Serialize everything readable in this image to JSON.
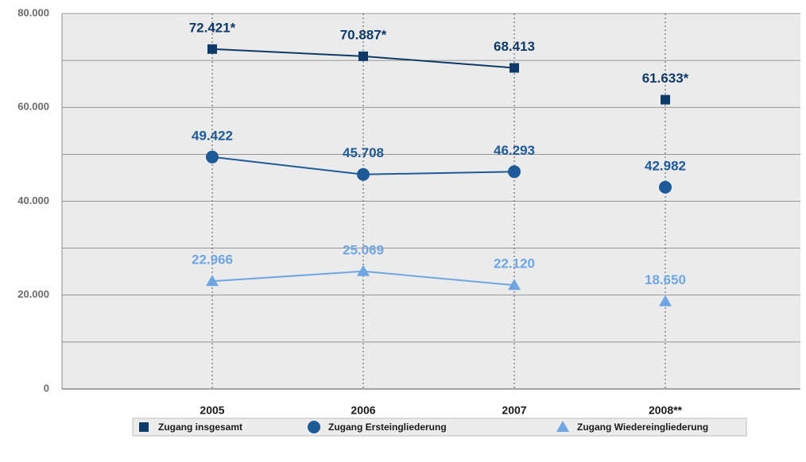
{
  "chart_data": {
    "type": "line",
    "categories": [
      "2005",
      "2006",
      "2007",
      "2008**"
    ],
    "series": [
      {
        "name": "Zugang insgesamt",
        "color": "#0e3a6a",
        "marker": "square",
        "values": [
          72421,
          70887,
          68413,
          61633
        ],
        "value_labels": [
          "72.421*",
          "70.887*",
          "68.413",
          "61.633*"
        ]
      },
      {
        "name": "Zugang Ersteingliederung",
        "color": "#1f5a98",
        "marker": "circle",
        "values": [
          49422,
          45708,
          46293,
          42982
        ],
        "value_labels": [
          "49.422",
          "45.708",
          "46.293",
          "42.982"
        ]
      },
      {
        "name": "Zugang Wiedereingliederung",
        "color": "#6ea6e4",
        "marker": "triangle",
        "values": [
          22966,
          25069,
          22120,
          18650
        ],
        "value_labels": [
          "22.966",
          "25.069",
          "22.120",
          "18.650"
        ]
      }
    ],
    "connect_last": false,
    "ylim": [
      0,
      80000
    ],
    "yticks": [
      0,
      {
        "value": 20000,
        "label": "20.000"
      },
      {
        "value": 40000,
        "label": "40.000"
      },
      {
        "value": 60000,
        "label": "60.000"
      },
      {
        "value": 80000,
        "label": "80.000"
      }
    ],
    "minor_yticks": [
      10000,
      30000,
      50000,
      70000
    ],
    "grid": true
  }
}
